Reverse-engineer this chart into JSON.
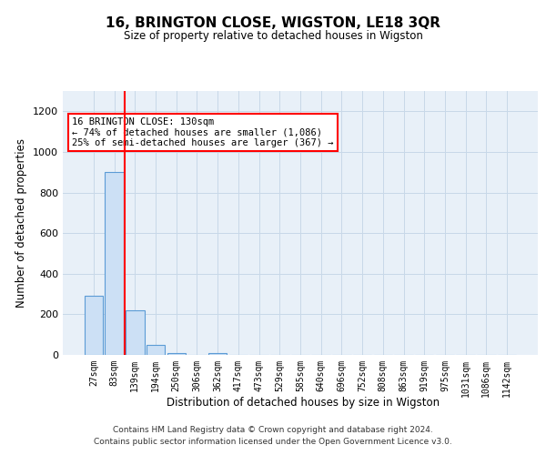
{
  "title": "16, BRINGTON CLOSE, WIGSTON, LE18 3QR",
  "subtitle": "Size of property relative to detached houses in Wigston",
  "xlabel": "Distribution of detached houses by size in Wigston",
  "ylabel": "Number of detached properties",
  "bar_labels": [
    "27sqm",
    "83sqm",
    "139sqm",
    "194sqm",
    "250sqm",
    "306sqm",
    "362sqm",
    "417sqm",
    "473sqm",
    "529sqm",
    "585sqm",
    "640sqm",
    "696sqm",
    "752sqm",
    "808sqm",
    "863sqm",
    "919sqm",
    "975sqm",
    "1031sqm",
    "1086sqm",
    "1142sqm"
  ],
  "bar_values": [
    290,
    900,
    220,
    50,
    10,
    0,
    10,
    0,
    0,
    0,
    0,
    0,
    0,
    0,
    0,
    0,
    0,
    0,
    0,
    0,
    0
  ],
  "bar_color": "#cce0f5",
  "bar_edge_color": "#5b9bd5",
  "grid_color": "#c8d8e8",
  "bg_color": "#e8f0f8",
  "marker_color": "red",
  "annotation_text": "16 BRINGTON CLOSE: 130sqm\n← 74% of detached houses are smaller (1,086)\n25% of semi-detached houses are larger (367) →",
  "annotation_box_color": "white",
  "annotation_box_edge": "red",
  "ylim": [
    0,
    1300
  ],
  "yticks": [
    0,
    200,
    400,
    600,
    800,
    1000,
    1200
  ],
  "footer_line1": "Contains HM Land Registry data © Crown copyright and database right 2024.",
  "footer_line2": "Contains public sector information licensed under the Open Government Licence v3.0."
}
